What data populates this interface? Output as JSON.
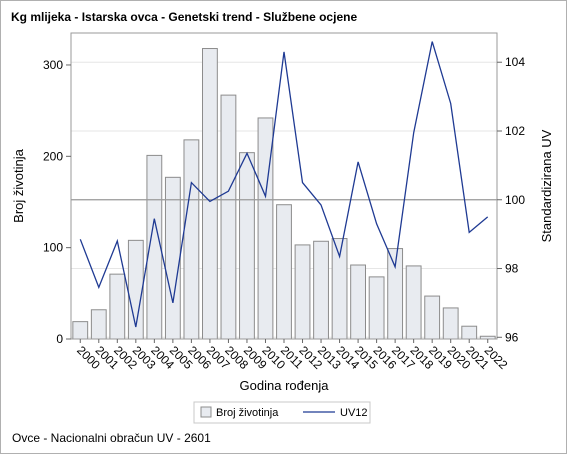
{
  "title": "Kg mlijeka - Istarska ovca - Genetski trend - Službene ocjene",
  "footnote": "Ovce - Nacionalni obračun UV - 2601",
  "chart_data": {
    "type": "bar",
    "title": "Kg mlijeka - Istarska ovca - Genetski trend - Službene ocjene",
    "xlabel": "Godina rođenja",
    "ylabel": "Broj životinja",
    "y2label": "Standardizirana UV",
    "categories": [
      "2000",
      "2001",
      "2002",
      "2003",
      "2004",
      "2005",
      "2006",
      "2007",
      "2008",
      "2009",
      "2010",
      "2011",
      "2012",
      "2013",
      "2014",
      "2015",
      "2016",
      "2017",
      "2018",
      "2019",
      "2020",
      "2021",
      "2022"
    ],
    "ylim": [
      0,
      335
    ],
    "yticks": [
      0,
      100,
      200,
      300
    ],
    "y2lim": [
      95.95,
      104.85
    ],
    "y2ticks": [
      96,
      98,
      100,
      102,
      104
    ],
    "reference_line_y2": 100,
    "grid": true,
    "legend_position": "bottom",
    "series": [
      {
        "name": "Broj životinja",
        "type": "bar",
        "axis": "left",
        "color": "#e8ebf0",
        "stroke": "#8c8c8c",
        "values": [
          19,
          32,
          71,
          108,
          201,
          177,
          218,
          318,
          267,
          204,
          242,
          147,
          103,
          107,
          110,
          81,
          68,
          99,
          80,
          47,
          34,
          14,
          3
        ]
      },
      {
        "name": "UV12",
        "type": "line",
        "axis": "right",
        "color": "#1f3a93",
        "values": [
          98.85,
          97.45,
          98.8,
          96.3,
          99.45,
          97.0,
          100.5,
          99.95,
          100.25,
          101.35,
          100.1,
          104.3,
          100.5,
          99.85,
          98.35,
          101.1,
          99.3,
          98.05,
          101.95,
          104.6,
          102.8,
          99.05,
          99.5
        ]
      }
    ]
  }
}
